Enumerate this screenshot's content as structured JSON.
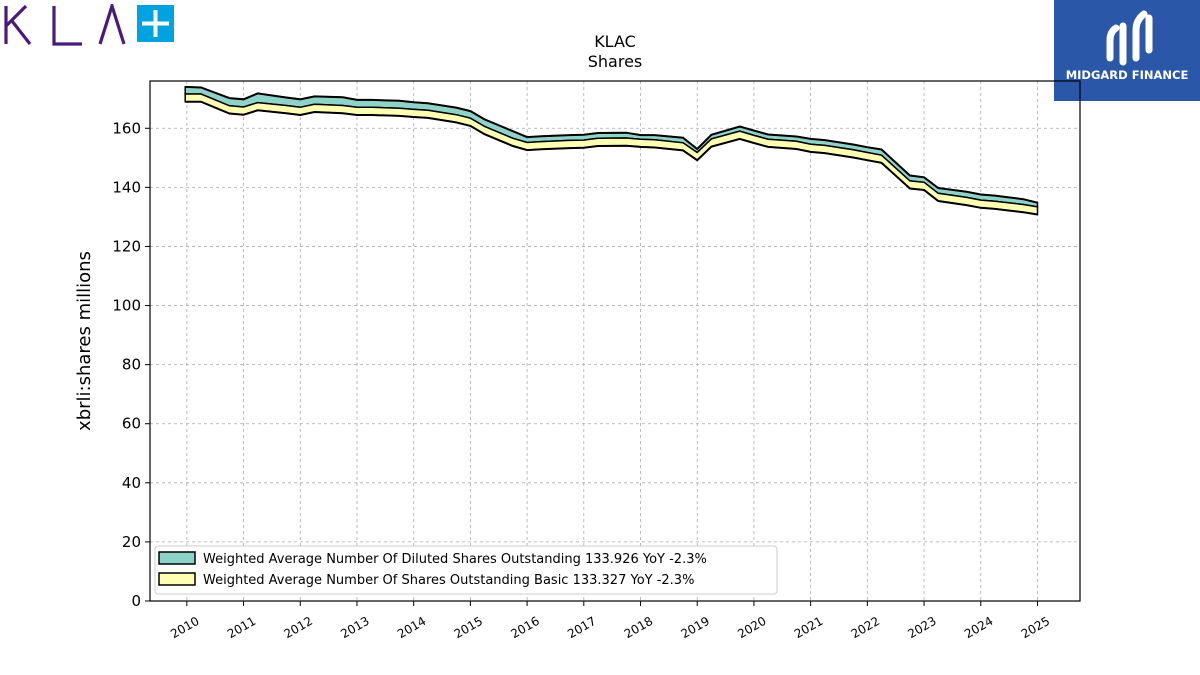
{
  "header": {
    "company_logo_text": "KLA",
    "company_logo_symbol": "+",
    "watermark_text": "MIDGARD FINANCE"
  },
  "colors": {
    "kla_purple": "#4a1a7a",
    "kla_cyan": "#00a3e0",
    "badge_blue": "#2b57a8",
    "diluted_fill": "#8dd3c7",
    "basic_fill": "#ffffb3",
    "line": "#000000",
    "grid": "#aaaaaa"
  },
  "chart_data": {
    "type": "area",
    "title": "KLAC",
    "subtitle": "Shares",
    "ylabel": "xbrli:shares millions",
    "xlabel": "",
    "ylim": [
      0,
      176
    ],
    "xlim": [
      2009.35,
      2025.75
    ],
    "yticks": [
      0,
      20,
      40,
      60,
      80,
      100,
      120,
      140,
      160
    ],
    "xticks": [
      "2010",
      "2011",
      "2012",
      "2013",
      "2014",
      "2015",
      "2016",
      "2017",
      "2018",
      "2019",
      "2020",
      "2021",
      "2022",
      "2023",
      "2024",
      "2025"
    ],
    "grid": true,
    "legend_position": "lower-left",
    "x": [
      2009.97,
      2010.25,
      2010.75,
      2011.0,
      2011.25,
      2011.75,
      2012.0,
      2012.25,
      2012.75,
      2013.0,
      2013.25,
      2013.75,
      2014.0,
      2014.25,
      2014.75,
      2015.0,
      2015.25,
      2015.75,
      2016.0,
      2016.25,
      2016.75,
      2017.0,
      2017.25,
      2017.75,
      2018.0,
      2018.25,
      2018.75,
      2019.0,
      2019.25,
      2019.75,
      2020.0,
      2020.25,
      2020.75,
      2021.0,
      2021.25,
      2021.75,
      2022.0,
      2022.25,
      2022.75,
      2023.0,
      2023.25,
      2023.75,
      2024.0,
      2024.25,
      2024.75,
      2025.0
    ],
    "series": [
      {
        "name": "Weighted Average Number Of Diluted Shares Outstanding",
        "legend_label": "Weighted Average Number Of Diluted Shares Outstanding  133.926 YoY -2.3%",
        "values": [
          174.0,
          173.8,
          170.2,
          169.8,
          171.8,
          170.4,
          169.8,
          170.8,
          170.5,
          169.6,
          169.6,
          169.3,
          168.8,
          168.5,
          167.0,
          165.8,
          163.0,
          159.0,
          157.0,
          157.3,
          157.7,
          157.8,
          158.4,
          158.5,
          157.7,
          157.7,
          156.8,
          153.0,
          157.8,
          160.6,
          159.2,
          157.9,
          157.2,
          156.4,
          156.0,
          154.5,
          153.6,
          152.8,
          144.0,
          143.4,
          139.8,
          138.5,
          137.6,
          137.2,
          136.0,
          134.8
        ]
      },
      {
        "name": "Weighted Average Number Of Shares Outstanding Basic",
        "legend_label": "Weighted Average Number Of Shares Outstanding Basic  133.327 YoY -2.3%",
        "values": [
          171.6,
          171.6,
          167.6,
          167.2,
          168.7,
          167.7,
          167.1,
          168.1,
          167.7,
          167.1,
          167.1,
          166.8,
          166.4,
          166.1,
          164.6,
          163.4,
          160.6,
          156.6,
          155.2,
          155.5,
          155.9,
          156.0,
          156.6,
          156.7,
          156.3,
          156.1,
          155.1,
          151.8,
          156.4,
          159.0,
          157.6,
          156.3,
          155.6,
          154.6,
          154.2,
          152.7,
          151.8,
          150.9,
          142.2,
          141.7,
          138.0,
          136.6,
          135.7,
          135.3,
          134.2,
          133.4
        ]
      }
    ]
  }
}
